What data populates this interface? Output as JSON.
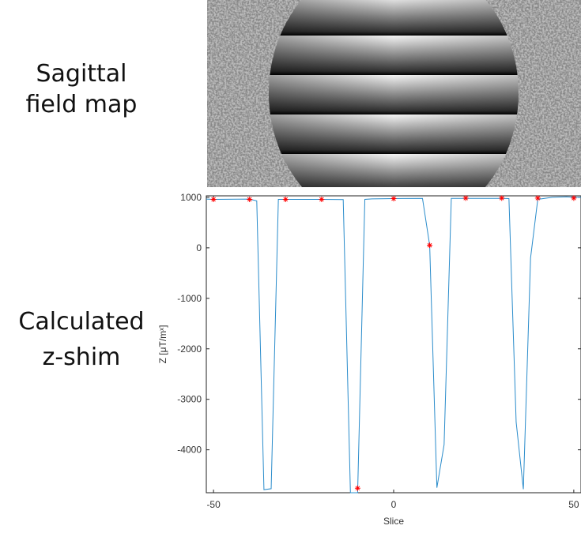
{
  "left_labels": [
    [
      "Sagittal",
      "field map"
    ],
    [
      "Calculated",
      "z-shim"
    ]
  ],
  "chart_data": {
    "type": "line",
    "xlabel": "Slice",
    "ylabel": "Z [μT/mˣ]",
    "xlim": [
      -52,
      52
    ],
    "ylim": [
      -4850,
      1030
    ],
    "xticks": [
      -50,
      0,
      50
    ],
    "yticks": [
      1000,
      0,
      -1000,
      -2000,
      -3000,
      -4000
    ],
    "series": [
      {
        "color": "#2a8ccb",
        "x": [
          -52,
          -50,
          -40,
          -38,
          -36,
          -34,
          -32,
          -30,
          -20,
          -14,
          -12,
          -10,
          -8,
          -6,
          0,
          8,
          10,
          12,
          14,
          16,
          20,
          30,
          32,
          34,
          36,
          38,
          40,
          44,
          48,
          50,
          52
        ],
        "values": [
          965,
          960,
          965,
          930,
          -4790,
          -4770,
          960,
          960,
          960,
          955,
          -4850,
          -4850,
          960,
          970,
          975,
          980,
          50,
          -4750,
          -3900,
          980,
          980,
          980,
          975,
          -3450,
          -4780,
          -200,
          960,
          1000,
          1010,
          1000,
          1000
        ]
      },
      {
        "color": "#ff0000",
        "marker": "star",
        "x": [
          -50,
          -40,
          -30,
          -20,
          -10,
          0,
          10,
          20,
          30,
          40,
          50
        ],
        "values": [
          960,
          960,
          960,
          960,
          -4760,
          975,
          50,
          985,
          985,
          985,
          985
        ]
      }
    ]
  }
}
